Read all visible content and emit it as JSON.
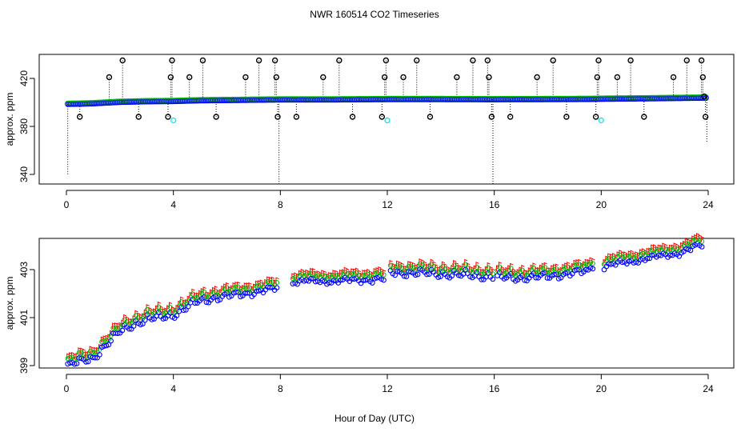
{
  "chart_data": [
    {
      "type": "scatter",
      "title": "NWR  160514  CO2 Timeseries",
      "xlabel": "",
      "ylabel": "approx. ppm",
      "xlim": [
        0,
        24
      ],
      "ylim": [
        332,
        440
      ],
      "x_ticks": [
        0,
        4,
        8,
        12,
        16,
        20,
        24
      ],
      "y_ticks": [
        340,
        380,
        420
      ],
      "y_tick_labels": [
        "340",
        "380",
        "420"
      ],
      "grid": false,
      "legend": "none",
      "colors": {
        "black": "#000000",
        "blue": "#0000ff",
        "cyan": "#00e5e5",
        "green": "#00c000",
        "red": "#ff0000"
      },
      "baseline": [
        {
          "x": 0.0,
          "y": 398.8
        },
        {
          "x": 0.5,
          "y": 399.0
        },
        {
          "x": 1.0,
          "y": 399.3
        },
        {
          "x": 2.0,
          "y": 400.5
        },
        {
          "x": 3.0,
          "y": 401.0
        },
        {
          "x": 4.0,
          "y": 401.2
        },
        {
          "x": 5.0,
          "y": 401.8
        },
        {
          "x": 6.0,
          "y": 402.0
        },
        {
          "x": 8.0,
          "y": 402.5
        },
        {
          "x": 10.0,
          "y": 402.5
        },
        {
          "x": 12.0,
          "y": 402.8
        },
        {
          "x": 14.0,
          "y": 402.8
        },
        {
          "x": 15.8,
          "y": 402.7
        },
        {
          "x": 16.0,
          "y": 402.7
        },
        {
          "x": 18.0,
          "y": 402.8
        },
        {
          "x": 19.5,
          "y": 402.9
        },
        {
          "x": 20.0,
          "y": 403.1
        },
        {
          "x": 22.0,
          "y": 403.5
        },
        {
          "x": 23.8,
          "y": 404.0
        }
      ],
      "black_markers": [
        {
          "x": 0.5,
          "y": 388
        },
        {
          "x": 1.6,
          "y": 421
        },
        {
          "x": 2.1,
          "y": 435
        },
        {
          "x": 2.7,
          "y": 388
        },
        {
          "x": 3.8,
          "y": 388
        },
        {
          "x": 3.9,
          "y": 421
        },
        {
          "x": 3.95,
          "y": 435
        },
        {
          "x": 4.6,
          "y": 421
        },
        {
          "x": 5.1,
          "y": 435
        },
        {
          "x": 5.6,
          "y": 388
        },
        {
          "x": 6.7,
          "y": 421
        },
        {
          "x": 7.2,
          "y": 435
        },
        {
          "x": 7.8,
          "y": 435
        },
        {
          "x": 7.85,
          "y": 421
        },
        {
          "x": 7.9,
          "y": 388
        },
        {
          "x": 8.6,
          "y": 388
        },
        {
          "x": 9.6,
          "y": 421
        },
        {
          "x": 10.2,
          "y": 435
        },
        {
          "x": 10.7,
          "y": 388
        },
        {
          "x": 11.8,
          "y": 388
        },
        {
          "x": 11.9,
          "y": 421
        },
        {
          "x": 11.95,
          "y": 435
        },
        {
          "x": 12.6,
          "y": 421
        },
        {
          "x": 13.1,
          "y": 435
        },
        {
          "x": 13.6,
          "y": 388
        },
        {
          "x": 14.6,
          "y": 421
        },
        {
          "x": 15.2,
          "y": 435
        },
        {
          "x": 15.75,
          "y": 435
        },
        {
          "x": 15.8,
          "y": 421
        },
        {
          "x": 15.9,
          "y": 388
        },
        {
          "x": 16.6,
          "y": 388
        },
        {
          "x": 17.6,
          "y": 421
        },
        {
          "x": 18.2,
          "y": 435
        },
        {
          "x": 18.7,
          "y": 388
        },
        {
          "x": 19.8,
          "y": 388
        },
        {
          "x": 19.85,
          "y": 421
        },
        {
          "x": 19.9,
          "y": 435
        },
        {
          "x": 20.6,
          "y": 421
        },
        {
          "x": 21.1,
          "y": 435
        },
        {
          "x": 21.6,
          "y": 388
        },
        {
          "x": 22.7,
          "y": 421
        },
        {
          "x": 23.2,
          "y": 435
        },
        {
          "x": 23.75,
          "y": 435
        },
        {
          "x": 23.8,
          "y": 421
        },
        {
          "x": 23.85,
          "y": 405
        },
        {
          "x": 23.9,
          "y": 388
        }
      ],
      "drop_lines": [
        {
          "x": 0.05,
          "y": 340
        },
        {
          "x": 7.95,
          "y": 332
        },
        {
          "x": 15.95,
          "y": 332
        },
        {
          "x": 23.95,
          "y": 367
        }
      ],
      "cyan_markers": [
        {
          "x": 4.0,
          "y": 385
        },
        {
          "x": 12.0,
          "y": 385
        },
        {
          "x": 20.0,
          "y": 385
        }
      ]
    },
    {
      "type": "scatter",
      "title": "",
      "xlabel": "Hour of Day (UTC)",
      "ylabel": "approx. ppm",
      "xlim": [
        0,
        24
      ],
      "ylim": [
        398.9,
        404.3
      ],
      "x_ticks": [
        0,
        4,
        8,
        12,
        16,
        20,
        24
      ],
      "y_ticks": [
        399,
        401,
        403
      ],
      "y_tick_labels": [
        "399",
        "401",
        "403"
      ],
      "grid": false,
      "legend": "none",
      "colors": {
        "blue": "#0000ff",
        "green": "#00c000",
        "red": "#ff0000"
      },
      "gaps": [
        [
          7.95,
          8.4
        ],
        [
          11.95,
          12.1
        ],
        [
          15.95,
          16.05
        ],
        [
          19.75,
          20.05
        ]
      ],
      "series_offsets": {
        "blue": 0.0,
        "green": 0.22,
        "red": 0.32
      },
      "trend": [
        {
          "x": 0.0,
          "y": 398.95
        },
        {
          "x": 0.5,
          "y": 399.15
        },
        {
          "x": 1.0,
          "y": 399.3
        },
        {
          "x": 1.5,
          "y": 399.85
        },
        {
          "x": 2.0,
          "y": 400.4
        },
        {
          "x": 2.5,
          "y": 400.7
        },
        {
          "x": 3.0,
          "y": 400.9
        },
        {
          "x": 4.0,
          "y": 401.1
        },
        {
          "x": 4.9,
          "y": 401.65
        },
        {
          "x": 5.5,
          "y": 401.8
        },
        {
          "x": 6.5,
          "y": 401.95
        },
        {
          "x": 7.9,
          "y": 402.2
        },
        {
          "x": 8.4,
          "y": 402.45
        },
        {
          "x": 9.0,
          "y": 402.5
        },
        {
          "x": 10.0,
          "y": 402.5
        },
        {
          "x": 11.0,
          "y": 402.55
        },
        {
          "x": 11.9,
          "y": 402.6
        },
        {
          "x": 12.1,
          "y": 402.85
        },
        {
          "x": 13.0,
          "y": 402.85
        },
        {
          "x": 14.0,
          "y": 402.8
        },
        {
          "x": 15.0,
          "y": 402.75
        },
        {
          "x": 15.9,
          "y": 402.7
        },
        {
          "x": 16.05,
          "y": 402.65
        },
        {
          "x": 17.0,
          "y": 402.65
        },
        {
          "x": 18.0,
          "y": 402.7
        },
        {
          "x": 19.0,
          "y": 402.85
        },
        {
          "x": 19.5,
          "y": 402.9
        },
        {
          "x": 19.75,
          "y": 403.25
        },
        {
          "x": 20.05,
          "y": 403.1
        },
        {
          "x": 21.0,
          "y": 403.3
        },
        {
          "x": 22.0,
          "y": 403.5
        },
        {
          "x": 23.0,
          "y": 403.7
        },
        {
          "x": 23.85,
          "y": 404.05
        }
      ]
    }
  ]
}
